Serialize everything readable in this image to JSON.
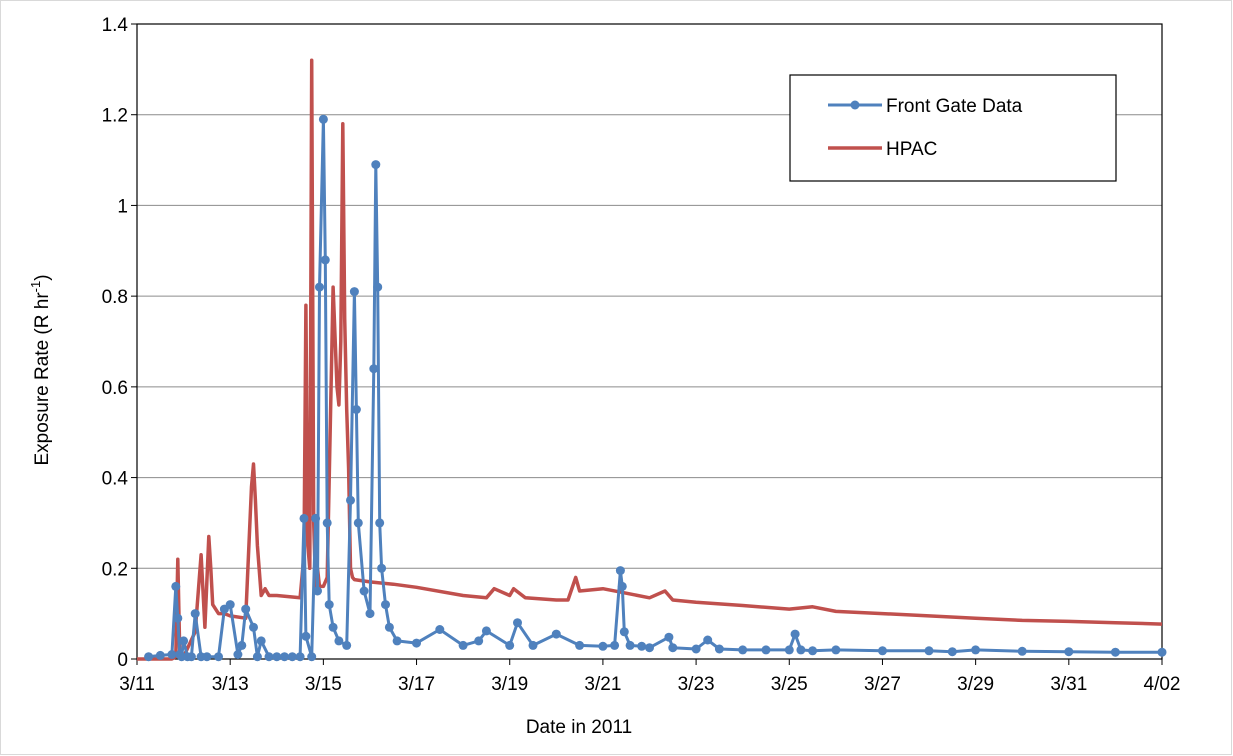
{
  "chart_data": {
    "type": "line",
    "title": "",
    "xlabel": "Date in 2011",
    "ylabel_main": "Exposure Rate (R hr",
    "ylabel_sup": "-1",
    "ylabel_close": ")",
    "xlim": [
      "2011-03-11",
      "2011-04-02"
    ],
    "ylim": [
      0,
      1.4
    ],
    "grid": "horizontal",
    "legend_position": "top-right",
    "x_ticks": [
      {
        "date": "2011-03-11",
        "label": "3/11"
      },
      {
        "date": "2011-03-13",
        "label": "3/13"
      },
      {
        "date": "2011-03-15",
        "label": "3/15"
      },
      {
        "date": "2011-03-17",
        "label": "3/17"
      },
      {
        "date": "2011-03-19",
        "label": "3/19"
      },
      {
        "date": "2011-03-21",
        "label": "3/21"
      },
      {
        "date": "2011-03-23",
        "label": "3/23"
      },
      {
        "date": "2011-03-25",
        "label": "3/25"
      },
      {
        "date": "2011-03-27",
        "label": "3/27"
      },
      {
        "date": "2011-03-29",
        "label": "3/29"
      },
      {
        "date": "2011-03-31",
        "label": "3/31"
      },
      {
        "date": "2011-04-02",
        "label": "4/02"
      }
    ],
    "y_ticks": [
      {
        "value": 0,
        "label": "0"
      },
      {
        "value": 0.2,
        "label": "0.2"
      },
      {
        "value": 0.4,
        "label": "0.4"
      },
      {
        "value": 0.6,
        "label": "0.6"
      },
      {
        "value": 0.8,
        "label": "0.8"
      },
      {
        "value": 1.0,
        "label": "1"
      },
      {
        "value": 1.2,
        "label": "1.2"
      },
      {
        "value": 1.4,
        "label": "1.4"
      }
    ],
    "series": [
      {
        "name": "Front Gate Data",
        "color": "#4f81bd",
        "marker": "circle",
        "x": [
          "2011-03-11 06:00",
          "2011-03-11 12:00",
          "2011-03-11 18:00",
          "2011-03-11 20:00",
          "2011-03-11 21:00",
          "2011-03-11 22:00",
          "2011-03-11 23:00",
          "2011-03-12 00:00",
          "2011-03-12 02:00",
          "2011-03-12 04:00",
          "2011-03-12 06:00",
          "2011-03-12 09:00",
          "2011-03-12 12:00",
          "2011-03-12 18:00",
          "2011-03-12 21:00",
          "2011-03-13 00:00",
          "2011-03-13 04:00",
          "2011-03-13 06:00",
          "2011-03-13 08:00",
          "2011-03-13 12:00",
          "2011-03-13 14:00",
          "2011-03-13 16:00",
          "2011-03-13 20:00",
          "2011-03-14 00:00",
          "2011-03-14 04:00",
          "2011-03-14 08:00",
          "2011-03-14 12:00",
          "2011-03-14 14:00",
          "2011-03-14 15:00",
          "2011-03-14 18:00",
          "2011-03-14 20:00",
          "2011-03-14 21:00",
          "2011-03-14 22:00",
          "2011-03-15 00:00",
          "2011-03-15 01:00",
          "2011-03-15 02:00",
          "2011-03-15 03:00",
          "2011-03-15 05:00",
          "2011-03-15 08:00",
          "2011-03-15 12:00",
          "2011-03-15 14:00",
          "2011-03-15 16:00",
          "2011-03-15 17:00",
          "2011-03-15 18:00",
          "2011-03-15 21:00",
          "2011-03-16 00:00",
          "2011-03-16 02:00",
          "2011-03-16 03:00",
          "2011-03-16 04:00",
          "2011-03-16 05:00",
          "2011-03-16 06:00",
          "2011-03-16 08:00",
          "2011-03-16 10:00",
          "2011-03-16 14:00",
          "2011-03-17 00:00",
          "2011-03-17 12:00",
          "2011-03-18 00:00",
          "2011-03-18 08:00",
          "2011-03-18 12:00",
          "2011-03-19 00:00",
          "2011-03-19 04:00",
          "2011-03-19 12:00",
          "2011-03-20 00:00",
          "2011-03-20 12:00",
          "2011-03-21 00:00",
          "2011-03-21 06:00",
          "2011-03-21 09:00",
          "2011-03-21 10:00",
          "2011-03-21 11:00",
          "2011-03-21 14:00",
          "2011-03-21 20:00",
          "2011-03-22 00:00",
          "2011-03-22 10:00",
          "2011-03-22 12:00",
          "2011-03-23 00:00",
          "2011-03-23 06:00",
          "2011-03-23 12:00",
          "2011-03-24 00:00",
          "2011-03-24 12:00",
          "2011-03-25 00:00",
          "2011-03-25 03:00",
          "2011-03-25 06:00",
          "2011-03-25 12:00",
          "2011-03-26 00:00",
          "2011-03-27 00:00",
          "2011-03-28 00:00",
          "2011-03-28 12:00",
          "2011-03-29 00:00",
          "2011-03-30 00:00",
          "2011-03-31 00:00",
          "2011-04-01 00:00",
          "2011-04-02 00:00"
        ],
        "y": [
          0.005,
          0.008,
          0.01,
          0.16,
          0.09,
          0.01,
          0.005,
          0.04,
          0.005,
          0.005,
          0.1,
          0.005,
          0.005,
          0.005,
          0.11,
          0.12,
          0.01,
          0.03,
          0.11,
          0.07,
          0.005,
          0.04,
          0.005,
          0.005,
          0.005,
          0.005,
          0.005,
          0.31,
          0.05,
          0.005,
          0.31,
          0.15,
          0.82,
          1.19,
          0.88,
          0.3,
          0.12,
          0.07,
          0.04,
          0.03,
          0.35,
          0.81,
          0.55,
          0.3,
          0.15,
          0.1,
          0.64,
          1.09,
          0.82,
          0.3,
          0.2,
          0.12,
          0.07,
          0.04,
          0.035,
          0.065,
          0.03,
          0.04,
          0.062,
          0.03,
          0.08,
          0.03,
          0.055,
          0.03,
          0.028,
          0.03,
          0.195,
          0.16,
          0.06,
          0.03,
          0.028,
          0.025,
          0.048,
          0.025,
          0.022,
          0.042,
          0.022,
          0.02,
          0.02,
          0.02,
          0.055,
          0.02,
          0.018,
          0.02,
          0.018,
          0.018,
          0.016,
          0.02,
          0.017,
          0.016,
          0.015,
          0.015
        ]
      },
      {
        "name": "HPAC",
        "color": "#c0504d",
        "marker": "none",
        "x": [
          "2011-03-11 00:00",
          "2011-03-11 18:00",
          "2011-03-11 20:00",
          "2011-03-11 21:00",
          "2011-03-11 22:00",
          "2011-03-11 23:00",
          "2011-03-12 00:00",
          "2011-03-12 06:00",
          "2011-03-12 09:00",
          "2011-03-12 11:00",
          "2011-03-12 13:00",
          "2011-03-12 14:00",
          "2011-03-12 15:00",
          "2011-03-12 18:00",
          "2011-03-12 21:00",
          "2011-03-13 00:00",
          "2011-03-13 08:00",
          "2011-03-13 11:00",
          "2011-03-13 12:00",
          "2011-03-13 13:00",
          "2011-03-13 14:00",
          "2011-03-13 16:00",
          "2011-03-13 18:00",
          "2011-03-13 20:00",
          "2011-03-14 00:00",
          "2011-03-14 12:00",
          "2011-03-14 14:00",
          "2011-03-14 15:00",
          "2011-03-14 16:00",
          "2011-03-14 17:00",
          "2011-03-14 18:00",
          "2011-03-14 19:00",
          "2011-03-14 20:00",
          "2011-03-14 21:00",
          "2011-03-14 22:00",
          "2011-03-14 23:00",
          "2011-03-15 00:00",
          "2011-03-15 02:00",
          "2011-03-15 05:00",
          "2011-03-15 07:00",
          "2011-03-15 08:00",
          "2011-03-15 09:00",
          "2011-03-15 10:00",
          "2011-03-15 11:00",
          "2011-03-15 12:00",
          "2011-03-15 13:00",
          "2011-03-15 14:00",
          "2011-03-15 15:00",
          "2011-03-15 16:00",
          "2011-03-16 00:00",
          "2011-03-16 12:00",
          "2011-03-17 00:00",
          "2011-03-18 00:00",
          "2011-03-18 12:00",
          "2011-03-18 16:00",
          "2011-03-19 00:00",
          "2011-03-19 02:00",
          "2011-03-19 08:00",
          "2011-03-20 00:00",
          "2011-03-20 06:00",
          "2011-03-20 10:00",
          "2011-03-20 12:00",
          "2011-03-21 00:00",
          "2011-03-21 12:00",
          "2011-03-22 00:00",
          "2011-03-22 08:00",
          "2011-03-22 12:00",
          "2011-03-23 00:00",
          "2011-03-24 00:00",
          "2011-03-25 00:00",
          "2011-03-25 12:00",
          "2011-03-26 00:00",
          "2011-03-27 00:00",
          "2011-03-28 00:00",
          "2011-03-29 00:00",
          "2011-03-30 00:00",
          "2011-03-31 00:00",
          "2011-04-01 00:00",
          "2011-04-02 00:00"
        ],
        "y": [
          0,
          0,
          0.005,
          0.22,
          0.02,
          0.005,
          0.005,
          0.06,
          0.23,
          0.07,
          0.27,
          0.2,
          0.12,
          0.1,
          0.1,
          0.095,
          0.09,
          0.38,
          0.43,
          0.35,
          0.25,
          0.14,
          0.155,
          0.14,
          0.14,
          0.135,
          0.23,
          0.78,
          0.25,
          0.2,
          1.32,
          0.3,
          0.16,
          0.2,
          0.16,
          0.16,
          0.16,
          0.18,
          0.82,
          0.6,
          0.56,
          0.7,
          1.18,
          0.75,
          0.55,
          0.42,
          0.2,
          0.18,
          0.175,
          0.17,
          0.165,
          0.158,
          0.14,
          0.135,
          0.155,
          0.14,
          0.155,
          0.135,
          0.13,
          0.13,
          0.18,
          0.15,
          0.155,
          0.145,
          0.135,
          0.15,
          0.13,
          0.125,
          0.118,
          0.11,
          0.115,
          0.105,
          0.1,
          0.095,
          0.09,
          0.085,
          0.083,
          0.08,
          0.077
        ]
      }
    ]
  }
}
